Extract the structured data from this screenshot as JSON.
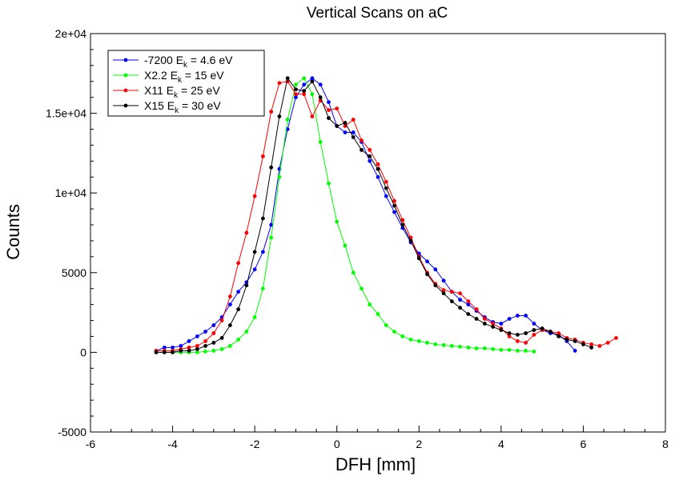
{
  "chart_data": {
    "type": "line",
    "title": "Vertical Scans on aC",
    "xlabel": "DFH [mm]",
    "ylabel": "Counts",
    "xlim": [
      -6,
      8
    ],
    "ylim": [
      -5000,
      20000
    ],
    "x_ticks": [
      -6,
      -4,
      -2,
      0,
      2,
      4,
      6,
      8
    ],
    "x_tick_labels": [
      "-6",
      "-4",
      "-2",
      "0",
      "2",
      "4",
      "6",
      "8"
    ],
    "y_ticks": [
      -5000,
      0,
      5000,
      10000,
      15000,
      20000
    ],
    "y_tick_labels": [
      "-5000",
      "0",
      "5000",
      "1e+04",
      "1.5e+04",
      "2e+04"
    ],
    "grid": false,
    "legend_position": "top-left",
    "series": [
      {
        "name": "-7200 E",
        "name_sub": "k",
        "name_suffix": " = 4.6 eV",
        "color": "#0000ff",
        "x": [
          -4.4,
          -4.2,
          -4.0,
          -3.8,
          -3.6,
          -3.4,
          -3.2,
          -3.0,
          -2.8,
          -2.6,
          -2.4,
          -2.2,
          -2.0,
          -1.8,
          -1.6,
          -1.4,
          -1.2,
          -1.0,
          -0.8,
          -0.6,
          -0.4,
          -0.2,
          0.0,
          0.2,
          0.4,
          0.6,
          0.8,
          1.0,
          1.2,
          1.4,
          1.6,
          1.8,
          2.0,
          2.2,
          2.4,
          2.6,
          2.8,
          3.0,
          3.2,
          3.4,
          3.6,
          3.8,
          4.0,
          4.2,
          4.4,
          4.6,
          4.8,
          5.0,
          5.2,
          5.4,
          5.6,
          5.8
        ],
        "y": [
          100,
          300,
          300,
          400,
          700,
          1000,
          1300,
          1700,
          2200,
          3000,
          3800,
          4400,
          5200,
          6300,
          8000,
          11500,
          14000,
          16000,
          16800,
          17200,
          16800,
          15700,
          14200,
          13800,
          13800,
          13200,
          12000,
          11000,
          9800,
          8800,
          7800,
          6900,
          6200,
          5700,
          5200,
          4500,
          3800,
          3300,
          3000,
          2600,
          2200,
          1900,
          1800,
          2100,
          2300,
          2300,
          1800,
          1400,
          1200,
          1100,
          700,
          100
        ]
      },
      {
        "name": "X2.2 E",
        "name_sub": "k",
        "name_suffix": " = 15 eV",
        "color": "#00ff00",
        "x": [
          -4.4,
          -4.2,
          -4.0,
          -3.8,
          -3.6,
          -3.4,
          -3.2,
          -3.0,
          -2.8,
          -2.6,
          -2.4,
          -2.2,
          -2.0,
          -1.8,
          -1.6,
          -1.4,
          -1.2,
          -1.0,
          -0.8,
          -0.6,
          -0.4,
          -0.2,
          0.0,
          0.2,
          0.4,
          0.6,
          0.8,
          1.0,
          1.2,
          1.4,
          1.6,
          1.8,
          2.0,
          2.2,
          2.4,
          2.6,
          2.8,
          3.0,
          3.2,
          3.4,
          3.6,
          3.8,
          4.0,
          4.2,
          4.4,
          4.6,
          4.8
        ],
        "y": [
          0,
          0,
          0,
          0,
          0,
          0,
          50,
          100,
          200,
          400,
          800,
          1300,
          2200,
          4000,
          7200,
          11000,
          14600,
          16800,
          17200,
          16200,
          13200,
          10600,
          8200,
          6700,
          5000,
          4000,
          3000,
          2400,
          1700,
          1300,
          1000,
          800,
          700,
          600,
          500,
          450,
          400,
          350,
          300,
          250,
          250,
          200,
          150,
          150,
          100,
          100,
          50
        ]
      },
      {
        "name": "X11 E",
        "name_sub": "k",
        "name_suffix": " = 25 eV",
        "color": "#ff0000",
        "x": [
          -4.4,
          -4.2,
          -4.0,
          -3.8,
          -3.6,
          -3.4,
          -3.2,
          -3.0,
          -2.8,
          -2.6,
          -2.4,
          -2.2,
          -2.0,
          -1.8,
          -1.6,
          -1.4,
          -1.2,
          -1.0,
          -0.8,
          -0.6,
          -0.4,
          -0.2,
          0.0,
          0.2,
          0.4,
          0.6,
          0.8,
          1.0,
          1.2,
          1.4,
          1.6,
          1.8,
          2.0,
          2.2,
          2.4,
          2.6,
          2.8,
          3.0,
          3.2,
          3.4,
          3.6,
          3.8,
          4.0,
          4.2,
          4.4,
          4.6,
          4.8,
          5.0,
          5.2,
          5.4,
          5.6,
          5.8,
          6.0,
          6.2,
          6.4,
          6.6,
          6.8
        ],
        "y": [
          100,
          100,
          100,
          200,
          300,
          400,
          700,
          1200,
          2000,
          3500,
          5600,
          7500,
          9800,
          12300,
          15100,
          16900,
          17000,
          16200,
          16200,
          14800,
          15800,
          15200,
          15300,
          14200,
          14600,
          13300,
          12700,
          11800,
          10700,
          9500,
          8300,
          7200,
          6000,
          5000,
          4300,
          3900,
          3800,
          3700,
          3200,
          2700,
          2100,
          1800,
          1500,
          1000,
          700,
          600,
          1100,
          1400,
          1300,
          1200,
          900,
          800,
          600,
          500,
          400,
          600,
          900
        ]
      },
      {
        "name": "X15 E",
        "name_sub": "k",
        "name_suffix": " = 30 eV",
        "color": "#000000",
        "x": [
          -4.4,
          -4.2,
          -4.0,
          -3.8,
          -3.6,
          -3.4,
          -3.2,
          -3.0,
          -2.8,
          -2.6,
          -2.4,
          -2.2,
          -2.0,
          -1.8,
          -1.6,
          -1.4,
          -1.2,
          -1.0,
          -0.8,
          -0.6,
          -0.4,
          -0.2,
          0.0,
          0.2,
          0.4,
          0.6,
          0.8,
          1.0,
          1.2,
          1.4,
          1.6,
          1.8,
          2.0,
          2.2,
          2.4,
          2.6,
          2.8,
          3.0,
          3.2,
          3.4,
          3.6,
          3.8,
          4.0,
          4.2,
          4.4,
          4.6,
          4.8,
          5.0,
          5.2,
          5.4,
          5.6,
          5.8,
          6.0,
          6.2
        ],
        "y": [
          0,
          0,
          0,
          100,
          100,
          200,
          400,
          600,
          900,
          1700,
          2700,
          4200,
          6300,
          8400,
          11600,
          14800,
          17200,
          16500,
          16400,
          17000,
          16000,
          14700,
          14200,
          14400,
          13500,
          12700,
          12300,
          11500,
          10300,
          9200,
          8000,
          7000,
          5900,
          4900,
          4200,
          3700,
          3200,
          2800,
          2400,
          2100,
          1800,
          1600,
          1400,
          1200,
          1100,
          1200,
          1400,
          1500,
          1300,
          1000,
          800,
          700,
          500,
          300
        ]
      }
    ]
  }
}
